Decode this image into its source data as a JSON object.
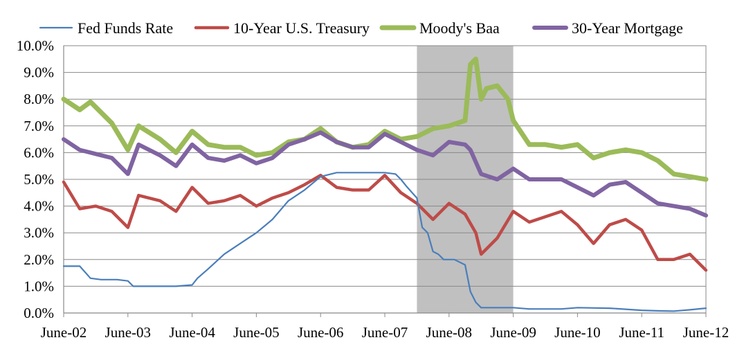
{
  "chart_data": {
    "type": "line",
    "title": "",
    "xlabel": "",
    "ylabel": "",
    "x_range": [
      "2002-06",
      "2012-06"
    ],
    "ylim": [
      0,
      10
    ],
    "y_ticks": [
      "0.0%",
      "1.0%",
      "2.0%",
      "3.0%",
      "4.0%",
      "5.0%",
      "6.0%",
      "7.0%",
      "8.0%",
      "9.0%",
      "10.0%"
    ],
    "x_ticks": [
      "June-02",
      "June-03",
      "June-04",
      "June-05",
      "June-06",
      "June-07",
      "June-08",
      "June-09",
      "June-10",
      "June-11",
      "June-12"
    ],
    "grid": "horizontal",
    "legend_position": "top",
    "recession_shading": {
      "start": "2007-12",
      "end": "2009-06",
      "color": "#c0c0c0"
    },
    "series": [
      {
        "name": "Fed Funds Rate",
        "color": "#4a7ebb",
        "x": [
          "2002-06",
          "2002-09",
          "2002-11",
          "2003-01",
          "2003-04",
          "2003-06",
          "2003-07",
          "2003-12",
          "2004-03",
          "2004-06",
          "2004-07",
          "2004-09",
          "2004-12",
          "2005-03",
          "2005-06",
          "2005-09",
          "2005-12",
          "2006-03",
          "2006-06",
          "2006-09",
          "2006-12",
          "2007-03",
          "2007-06",
          "2007-08",
          "2007-09",
          "2007-10",
          "2007-12",
          "2008-01",
          "2008-02",
          "2008-03",
          "2008-04",
          "2008-05",
          "2008-07",
          "2008-09",
          "2008-10",
          "2008-11",
          "2008-12",
          "2009-03",
          "2009-06",
          "2009-09",
          "2010-03",
          "2010-06",
          "2010-12",
          "2011-06",
          "2011-09",
          "2011-12",
          "2012-03",
          "2012-06"
        ],
        "values": [
          1.75,
          1.75,
          1.3,
          1.25,
          1.25,
          1.2,
          1.0,
          1.0,
          1.0,
          1.05,
          1.3,
          1.65,
          2.2,
          2.6,
          3.0,
          3.5,
          4.2,
          4.6,
          5.1,
          5.25,
          5.25,
          5.25,
          5.25,
          5.2,
          5.0,
          4.75,
          4.3,
          3.2,
          3.0,
          2.3,
          2.2,
          2.0,
          2.0,
          1.8,
          0.8,
          0.4,
          0.2,
          0.2,
          0.2,
          0.15,
          0.15,
          0.2,
          0.18,
          0.1,
          0.08,
          0.07,
          0.12,
          0.18
        ]
      },
      {
        "name": "10-Year U.S. Treasury",
        "color": "#be4b48",
        "x": [
          "2002-06",
          "2002-09",
          "2002-12",
          "2003-03",
          "2003-06",
          "2003-08",
          "2003-12",
          "2004-03",
          "2004-06",
          "2004-09",
          "2004-12",
          "2005-03",
          "2005-06",
          "2005-09",
          "2005-12",
          "2006-03",
          "2006-06",
          "2006-09",
          "2006-12",
          "2007-03",
          "2007-06",
          "2007-09",
          "2007-12",
          "2008-03",
          "2008-06",
          "2008-09",
          "2008-11",
          "2008-12",
          "2009-03",
          "2009-06",
          "2009-09",
          "2009-12",
          "2010-03",
          "2010-06",
          "2010-09",
          "2010-12",
          "2011-03",
          "2011-06",
          "2011-09",
          "2011-12",
          "2012-03",
          "2012-06"
        ],
        "values": [
          4.9,
          3.9,
          4.0,
          3.8,
          3.2,
          4.4,
          4.2,
          3.8,
          4.7,
          4.1,
          4.2,
          4.4,
          4.0,
          4.3,
          4.5,
          4.8,
          5.15,
          4.7,
          4.6,
          4.6,
          5.15,
          4.5,
          4.1,
          3.5,
          4.1,
          3.7,
          3.0,
          2.2,
          2.8,
          3.8,
          3.4,
          3.6,
          3.8,
          3.3,
          2.6,
          3.3,
          3.5,
          3.1,
          2.0,
          2.0,
          2.2,
          1.6
        ]
      },
      {
        "name": "Moody's Baa",
        "color": "#9bbb59",
        "x": [
          "2002-06",
          "2002-09",
          "2002-11",
          "2003-03",
          "2003-06",
          "2003-08",
          "2003-12",
          "2004-03",
          "2004-06",
          "2004-09",
          "2004-12",
          "2005-03",
          "2005-06",
          "2005-09",
          "2005-12",
          "2006-03",
          "2006-06",
          "2006-09",
          "2006-12",
          "2007-03",
          "2007-06",
          "2007-09",
          "2007-12",
          "2008-03",
          "2008-06",
          "2008-09",
          "2008-10",
          "2008-11",
          "2008-12",
          "2009-01",
          "2009-03",
          "2009-05",
          "2009-06",
          "2009-09",
          "2009-12",
          "2010-03",
          "2010-06",
          "2010-09",
          "2010-12",
          "2011-03",
          "2011-06",
          "2011-09",
          "2011-12",
          "2012-03",
          "2012-06"
        ],
        "values": [
          8.0,
          7.6,
          7.9,
          7.1,
          6.1,
          7.0,
          6.5,
          6.0,
          6.8,
          6.3,
          6.2,
          6.2,
          5.9,
          6.0,
          6.4,
          6.5,
          6.9,
          6.4,
          6.2,
          6.3,
          6.8,
          6.5,
          6.6,
          6.9,
          7.0,
          7.2,
          9.3,
          9.5,
          8.0,
          8.4,
          8.5,
          8.0,
          7.2,
          6.3,
          6.3,
          6.2,
          6.3,
          5.8,
          6.0,
          6.1,
          6.0,
          5.7,
          5.2,
          5.1,
          5.0
        ]
      },
      {
        "name": "30-Year Mortgage",
        "color": "#8064a2",
        "x": [
          "2002-06",
          "2002-09",
          "2002-12",
          "2003-03",
          "2003-06",
          "2003-08",
          "2003-12",
          "2004-03",
          "2004-06",
          "2004-09",
          "2004-12",
          "2005-03",
          "2005-06",
          "2005-09",
          "2005-12",
          "2006-03",
          "2006-06",
          "2006-09",
          "2006-12",
          "2007-03",
          "2007-06",
          "2007-09",
          "2007-12",
          "2008-03",
          "2008-06",
          "2008-09",
          "2008-10",
          "2008-12",
          "2009-03",
          "2009-06",
          "2009-09",
          "2009-12",
          "2010-03",
          "2010-06",
          "2010-09",
          "2010-12",
          "2011-03",
          "2011-06",
          "2011-09",
          "2011-12",
          "2012-03",
          "2012-06"
        ],
        "values": [
          6.5,
          6.1,
          5.95,
          5.8,
          5.2,
          6.3,
          5.9,
          5.5,
          6.3,
          5.8,
          5.7,
          5.9,
          5.6,
          5.8,
          6.3,
          6.5,
          6.75,
          6.4,
          6.2,
          6.2,
          6.7,
          6.4,
          6.1,
          5.9,
          6.4,
          6.3,
          6.1,
          5.2,
          5.0,
          5.4,
          5.0,
          5.0,
          5.0,
          4.7,
          4.4,
          4.8,
          4.9,
          4.5,
          4.1,
          4.0,
          3.9,
          3.65
        ]
      }
    ]
  }
}
